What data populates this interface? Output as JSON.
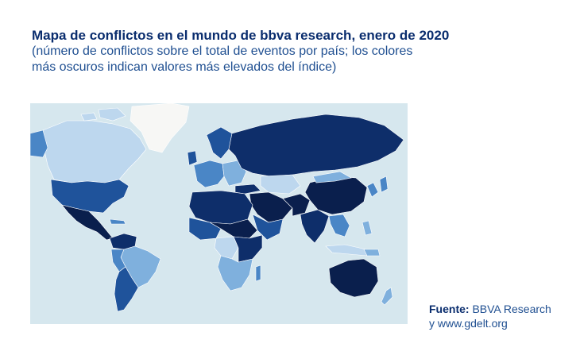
{
  "header": {
    "title": "Mapa de conflictos en el mundo de bbva research, enero de 2020",
    "subtitle_line1": "(número de conflictos sobre el total de eventos por país; los colores",
    "subtitle_line2": "más oscuros indican valores más elevados del índice)"
  },
  "map": {
    "colors": {
      "ocean": "#d6e7ee",
      "land_unknown": "#f7f7f5",
      "level_1": "#bdd7ee",
      "level_2": "#7fb0dd",
      "level_3": "#4a86c6",
      "level_4": "#1f539b",
      "level_5": "#0e2e6a",
      "level_6": "#0a1f4d"
    }
  },
  "source": {
    "label": "Fuente:",
    "line1": "BBVA Research",
    "line2": "y www.gdelt.org"
  }
}
